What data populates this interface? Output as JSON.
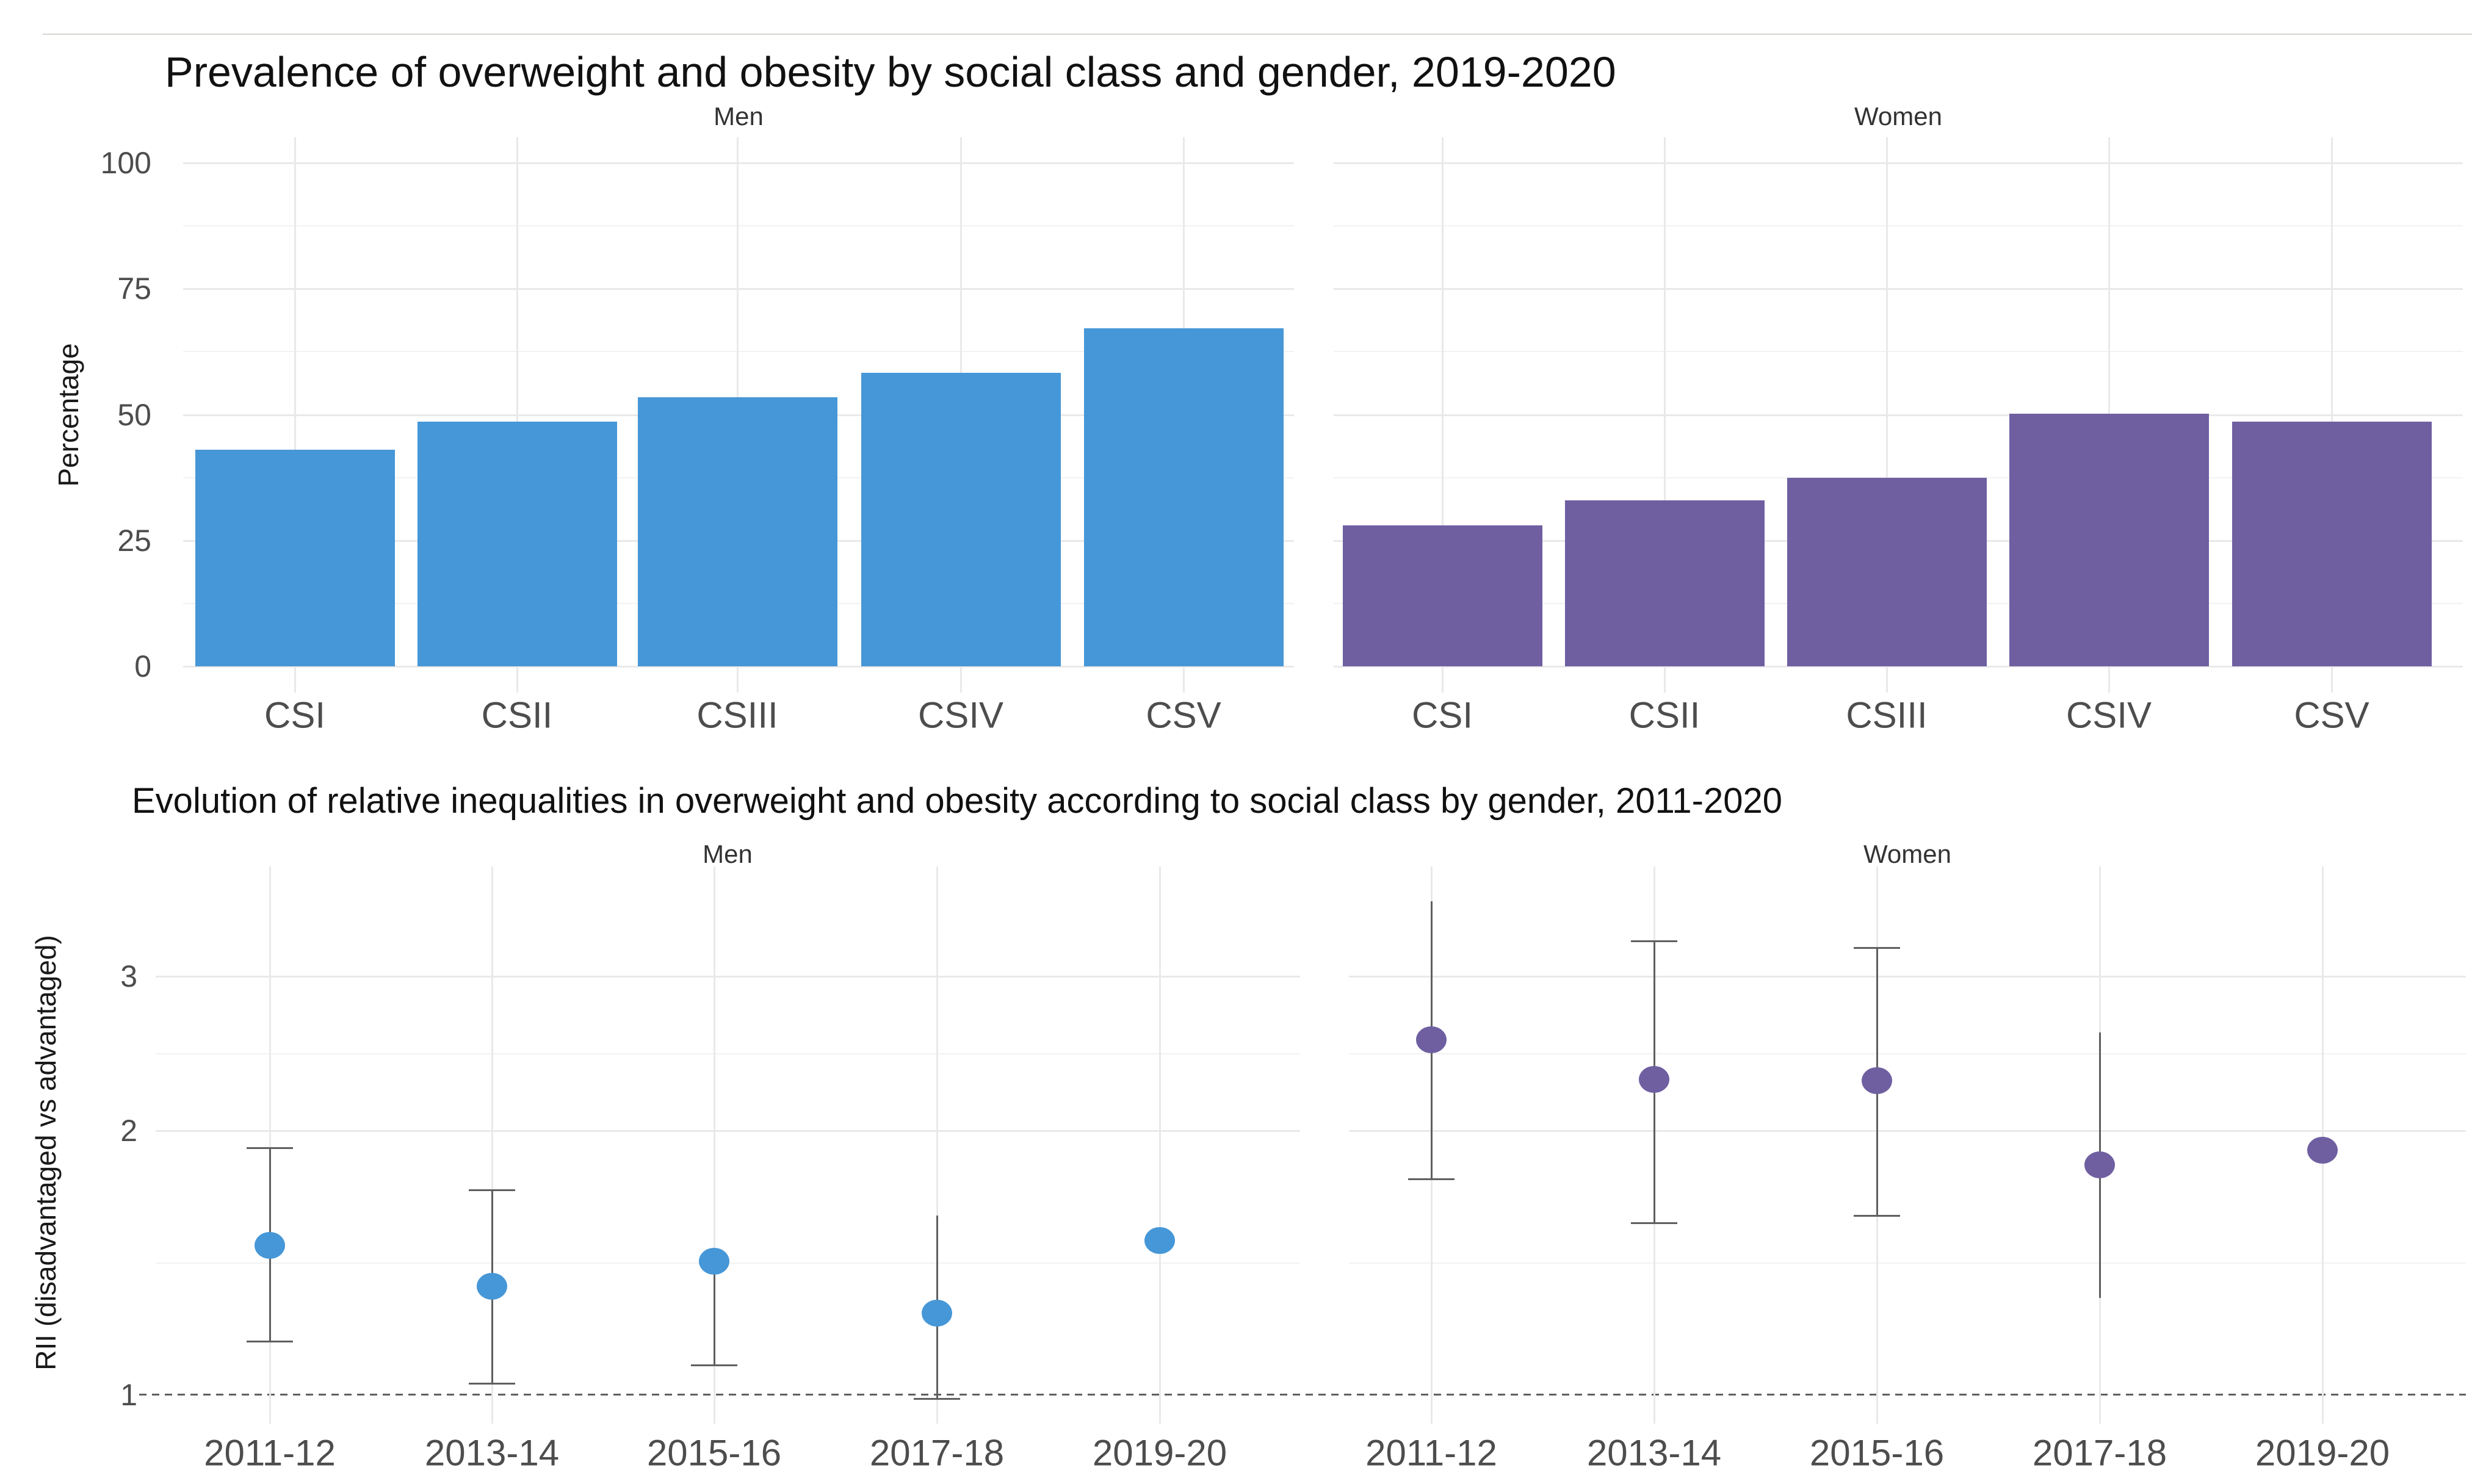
{
  "titles": {
    "top": "Prevalence of overweight and obesity by social class and gender, 2019-2020",
    "bottom": "Evolution of relative inequalities in overweight and obesity according to social class by gender, 2011-2020"
  },
  "colors": {
    "men": "#4697d7",
    "women": "#6f5fa1",
    "grid_major": "#e9e9e9",
    "grid_minor": "#f2f2f2",
    "tick_label": "#4d4d4d",
    "whisker": "#5f5f5f",
    "background": "#ffffff"
  },
  "chart_data": [
    {
      "type": "bar",
      "title": "Prevalence of overweight and obesity by social class and gender, 2019-2020",
      "categories": [
        "CSI",
        "CSII",
        "CSIII",
        "CSIV",
        "CSV"
      ],
      "ylabel": "Percentage",
      "yticks": [
        0,
        25,
        50,
        75,
        100
      ],
      "ylim": [
        0,
        105
      ],
      "grid": "on",
      "facets": [
        {
          "label": "Men",
          "color": "#4697d7",
          "values": [
            43.0,
            48.6,
            53.4,
            58.3,
            67.2
          ]
        },
        {
          "label": "Women",
          "color": "#6f5fa1",
          "values": [
            28.0,
            33.0,
            37.5,
            50.2,
            48.6
          ]
        }
      ]
    },
    {
      "type": "scatter",
      "subtype": "pointrange",
      "title": "Evolution of relative inequalities in overweight and obesity according to social class by gender, 2011-2020",
      "categories": [
        "2011-12",
        "2013-14",
        "2015-16",
        "2017-18",
        "2019-20"
      ],
      "ylabel": "RII (disadvantaged vs advantaged)",
      "yscale": "log10",
      "yticks": [
        1,
        2,
        3
      ],
      "ylim": [
        0.93,
        4.0
      ],
      "reference_line": 1,
      "grid": "on",
      "facets": [
        {
          "label": "Men",
          "color": "#4697d7",
          "points": [
            {
              "x": "2011-12",
              "v": 1.48,
              "lo": 1.15,
              "hi": 1.91,
              "cap_lo": true,
              "cap_hi": true
            },
            {
              "x": "2013-14",
              "v": 1.33,
              "lo": 1.03,
              "hi": 1.71,
              "cap_lo": true,
              "cap_hi": true
            },
            {
              "x": "2015-16",
              "v": 1.42,
              "lo": 1.08,
              "hi": null,
              "cap_lo": true,
              "cap_hi": false
            },
            {
              "x": "2017-18",
              "v": 1.24,
              "lo": 0.99,
              "hi": 1.6,
              "cap_lo": true,
              "cap_hi": false
            },
            {
              "x": "2019-20",
              "v": 1.5,
              "lo": null,
              "hi": null,
              "cap_lo": false,
              "cap_hi": false
            }
          ]
        },
        {
          "label": "Women",
          "color": "#6f5fa1",
          "points": [
            {
              "x": "2011-12",
              "v": 2.54,
              "lo": 1.76,
              "hi": 3.65,
              "cap_lo": true,
              "cap_hi": false
            },
            {
              "x": "2013-14",
              "v": 2.29,
              "lo": 1.57,
              "hi": 3.29,
              "cap_lo": true,
              "cap_hi": true
            },
            {
              "x": "2015-16",
              "v": 2.28,
              "lo": 1.6,
              "hi": 3.23,
              "cap_lo": true,
              "cap_hi": true
            },
            {
              "x": "2017-18",
              "v": 1.83,
              "lo": 1.29,
              "hi": 2.59,
              "cap_lo": false,
              "cap_hi": false
            },
            {
              "x": "2019-20",
              "v": 1.9,
              "lo": null,
              "hi": null,
              "cap_lo": false,
              "cap_hi": false
            }
          ]
        }
      ]
    }
  ]
}
